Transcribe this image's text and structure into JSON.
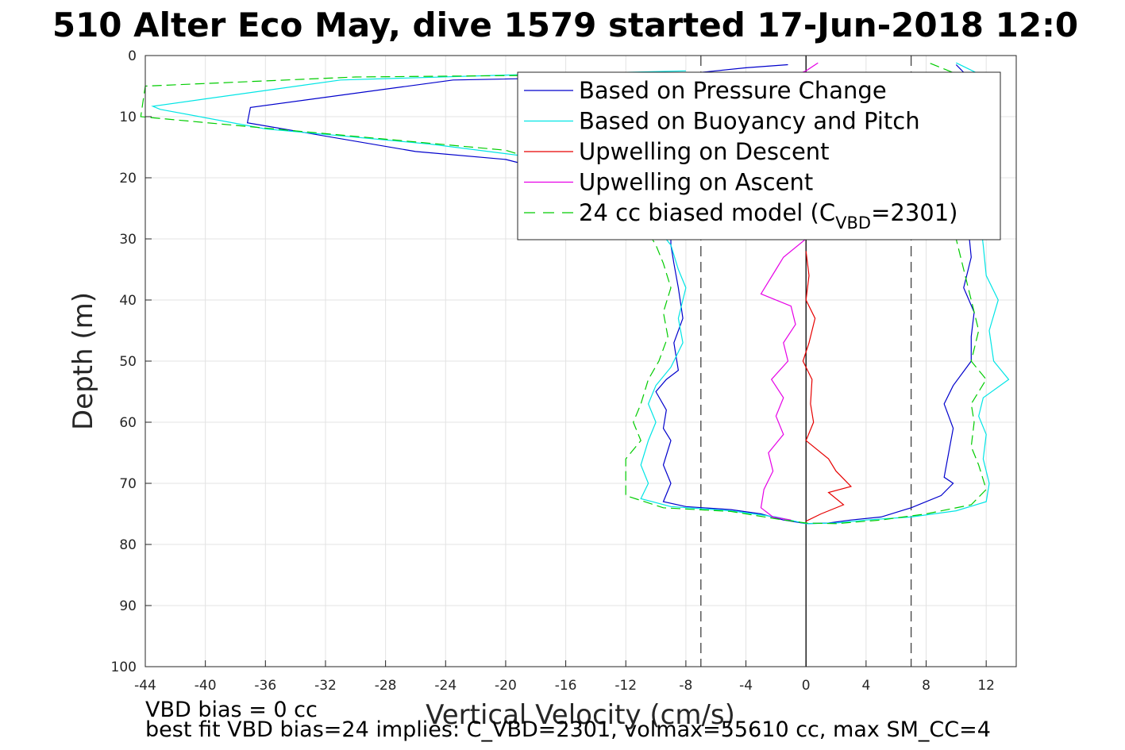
{
  "chart_data": {
    "type": "line",
    "title": "510 Alter Eco May, dive 1579 started 17-Jun-2018 12:0",
    "xlabel": "Vertical Velocity (cm/s)",
    "ylabel": "Depth (m)",
    "xlim": [
      -44,
      14
    ],
    "ylim": [
      0,
      100
    ],
    "y_reversed": true,
    "grid": true,
    "xticks": [
      -44,
      -40,
      -36,
      -32,
      -28,
      -24,
      -20,
      -16,
      -12,
      -8,
      -4,
      0,
      4,
      8,
      12
    ],
    "yticks": [
      0,
      10,
      20,
      30,
      40,
      50,
      60,
      70,
      80,
      90,
      100
    ],
    "reference_lines": [
      {
        "x": 0,
        "style": "solid",
        "color": "#000000"
      },
      {
        "x": -7,
        "style": "dashed",
        "color": "#404040"
      },
      {
        "x": 7,
        "style": "dashed",
        "color": "#404040"
      }
    ],
    "legend_position": "top-right",
    "legend": [
      {
        "label": "Based on Pressure Change",
        "color": "#0000cc",
        "dash": false
      },
      {
        "label": "Based on Buoyancy and Pitch",
        "color": "#00e5e5",
        "dash": false
      },
      {
        "label": "Upwelling on Descent",
        "color": "#e60000",
        "dash": false
      },
      {
        "label": "Upwelling on Ascent",
        "color": "#e600e6",
        "dash": false
      },
      {
        "label": "24 cc biased model (C",
        "sub": "VBD",
        "tail": "=2301)",
        "color": "#00cc00",
        "dash": true
      }
    ],
    "series": [
      {
        "name": "Based on Pressure Change",
        "color": "#0000cc",
        "dash": false,
        "points": [
          [
            -1.2,
            1.5
          ],
          [
            -4,
            2
          ],
          [
            -8,
            3
          ],
          [
            -15,
            3.6
          ],
          [
            -23.5,
            4
          ],
          [
            -37,
            8.5
          ],
          [
            -37.2,
            11
          ],
          [
            -26,
            15.7
          ],
          [
            -20,
            17
          ],
          [
            -12,
            22
          ],
          [
            -9,
            28
          ],
          [
            -9,
            31
          ],
          [
            -8.8,
            34
          ],
          [
            -8.5,
            38
          ],
          [
            -8.2,
            43
          ],
          [
            -8.8,
            47
          ],
          [
            -8.5,
            51.5
          ],
          [
            -9.3,
            53
          ],
          [
            -10,
            55
          ],
          [
            -9.3,
            58
          ],
          [
            -9.5,
            61
          ],
          [
            -9,
            63
          ],
          [
            -9.5,
            67
          ],
          [
            -9,
            70
          ],
          [
            -9.5,
            73
          ],
          [
            -8,
            73.8
          ],
          [
            -5,
            74.3
          ],
          [
            -3,
            75
          ],
          [
            -1.5,
            76
          ],
          [
            0,
            76.6
          ],
          [
            1.5,
            76.5
          ],
          [
            3,
            76
          ],
          [
            5,
            75.5
          ],
          [
            7,
            74
          ],
          [
            9,
            72
          ],
          [
            9.8,
            70
          ],
          [
            9.2,
            69
          ],
          [
            9.5,
            65
          ],
          [
            9.8,
            61
          ],
          [
            9.2,
            57
          ],
          [
            9.8,
            54
          ],
          [
            11,
            50
          ],
          [
            11,
            46
          ],
          [
            11.2,
            42
          ],
          [
            10.5,
            38
          ],
          [
            11,
            33
          ],
          [
            10.8,
            28
          ],
          [
            10.5,
            20
          ],
          [
            10.5,
            10
          ],
          [
            10.6,
            3
          ],
          [
            10,
            1.5
          ]
        ]
      },
      {
        "name": "Based on Buoyancy and Pitch",
        "color": "#00e5e5",
        "dash": false,
        "points": [
          [
            -8,
            2.5
          ],
          [
            -20,
            3.2
          ],
          [
            -31,
            4
          ],
          [
            -43.5,
            8.3
          ],
          [
            -43,
            8.8
          ],
          [
            -36,
            12
          ],
          [
            -25,
            14.5
          ],
          [
            -17,
            17
          ],
          [
            -12,
            22
          ],
          [
            -10,
            28
          ],
          [
            -9,
            31
          ],
          [
            -8.5,
            35
          ],
          [
            -8,
            38
          ],
          [
            -8.5,
            43
          ],
          [
            -8.2,
            47
          ],
          [
            -9,
            51
          ],
          [
            -10,
            54
          ],
          [
            -10.5,
            57
          ],
          [
            -10,
            60
          ],
          [
            -10.5,
            63
          ],
          [
            -11,
            67
          ],
          [
            -10.5,
            70
          ],
          [
            -11,
            72.5
          ],
          [
            -9,
            73.8
          ],
          [
            -5,
            74.5
          ],
          [
            -2,
            75.5
          ],
          [
            0,
            76.6
          ],
          [
            2,
            76.5
          ],
          [
            4,
            76
          ],
          [
            7,
            75.5
          ],
          [
            10,
            74.5
          ],
          [
            12,
            73
          ],
          [
            12.2,
            70
          ],
          [
            11.8,
            66
          ],
          [
            12,
            62
          ],
          [
            11.5,
            59
          ],
          [
            11.8,
            56
          ],
          [
            13.5,
            53
          ],
          [
            12.5,
            50
          ],
          [
            12.2,
            45
          ],
          [
            12.8,
            40
          ],
          [
            12,
            36
          ],
          [
            11.8,
            31
          ],
          [
            11.5,
            25
          ],
          [
            11.5,
            15
          ],
          [
            11.8,
            6
          ],
          [
            11.5,
            3
          ],
          [
            10,
            1.2
          ]
        ]
      },
      {
        "name": "Upwelling on Descent",
        "color": "#e60000",
        "dash": false,
        "points": [
          [
            0,
            32
          ],
          [
            0.2,
            36
          ],
          [
            0,
            40
          ],
          [
            0.6,
            43
          ],
          [
            0.2,
            47
          ],
          [
            -0.2,
            50
          ],
          [
            0.4,
            53
          ],
          [
            0.3,
            57
          ],
          [
            0.5,
            60
          ],
          [
            0,
            63
          ],
          [
            1.5,
            66
          ],
          [
            2,
            68
          ],
          [
            3,
            70.5
          ],
          [
            1.5,
            71.5
          ],
          [
            2.5,
            73.5
          ],
          [
            1,
            75
          ],
          [
            0,
            76.2
          ]
        ]
      },
      {
        "name": "Upwelling on Ascent",
        "color": "#e600e6",
        "dash": false,
        "points": [
          [
            0.8,
            1.2
          ],
          [
            0,
            2.5
          ],
          [
            -0.5,
            3
          ],
          [
            0,
            30
          ],
          [
            -1.5,
            33
          ],
          [
            -2,
            35
          ],
          [
            -2.5,
            37
          ],
          [
            -3,
            39
          ],
          [
            -1,
            41
          ],
          [
            -0.7,
            44
          ],
          [
            -1.5,
            47
          ],
          [
            -1.2,
            50
          ],
          [
            -2.3,
            53
          ],
          [
            -1.5,
            56
          ],
          [
            -2,
            59
          ],
          [
            -1.5,
            62
          ],
          [
            -2.5,
            65
          ],
          [
            -2.2,
            68
          ],
          [
            -2.8,
            71
          ],
          [
            -3,
            74
          ],
          [
            -2.2,
            75.5
          ],
          [
            -1,
            76
          ]
        ]
      },
      {
        "name": "24 cc biased model (CVBD=2301)",
        "color": "#00cc00",
        "dash": true,
        "points": [
          [
            -2,
            2.8
          ],
          [
            -16,
            3.2
          ],
          [
            -30,
            3.5
          ],
          [
            -44,
            5
          ],
          [
            -44.3,
            10
          ],
          [
            -31,
            13
          ],
          [
            -20,
            15.5
          ],
          [
            -14,
            20
          ],
          [
            -11,
            27
          ],
          [
            -10,
            31
          ],
          [
            -9.5,
            34
          ],
          [
            -9,
            38
          ],
          [
            -9.5,
            42
          ],
          [
            -9.2,
            46
          ],
          [
            -9.8,
            50
          ],
          [
            -10.5,
            53
          ],
          [
            -11,
            57
          ],
          [
            -11.5,
            60
          ],
          [
            -11,
            63
          ],
          [
            -12,
            66
          ],
          [
            -12,
            69
          ],
          [
            -12,
            72
          ],
          [
            -9.5,
            74
          ],
          [
            -5,
            74.6
          ],
          [
            -2,
            75.8
          ],
          [
            0,
            76.5
          ],
          [
            2,
            76.6
          ],
          [
            5,
            76
          ],
          [
            8,
            75
          ],
          [
            11,
            73.5
          ],
          [
            12,
            71
          ],
          [
            11.5,
            67
          ],
          [
            11,
            64
          ],
          [
            11.2,
            60
          ],
          [
            11,
            57
          ],
          [
            12,
            53
          ],
          [
            11,
            50
          ],
          [
            11.5,
            45
          ],
          [
            11,
            40
          ],
          [
            10.5,
            35
          ],
          [
            10,
            30
          ],
          [
            10,
            20
          ],
          [
            10.5,
            10
          ],
          [
            11,
            4
          ],
          [
            8,
            1
          ]
        ]
      }
    ],
    "annotations": [
      "VBD bias = 0 cc",
      "best fit VBD bias=24 implies: C_VBD=2301, volmax=55610 cc, max SM_CC=4"
    ]
  }
}
